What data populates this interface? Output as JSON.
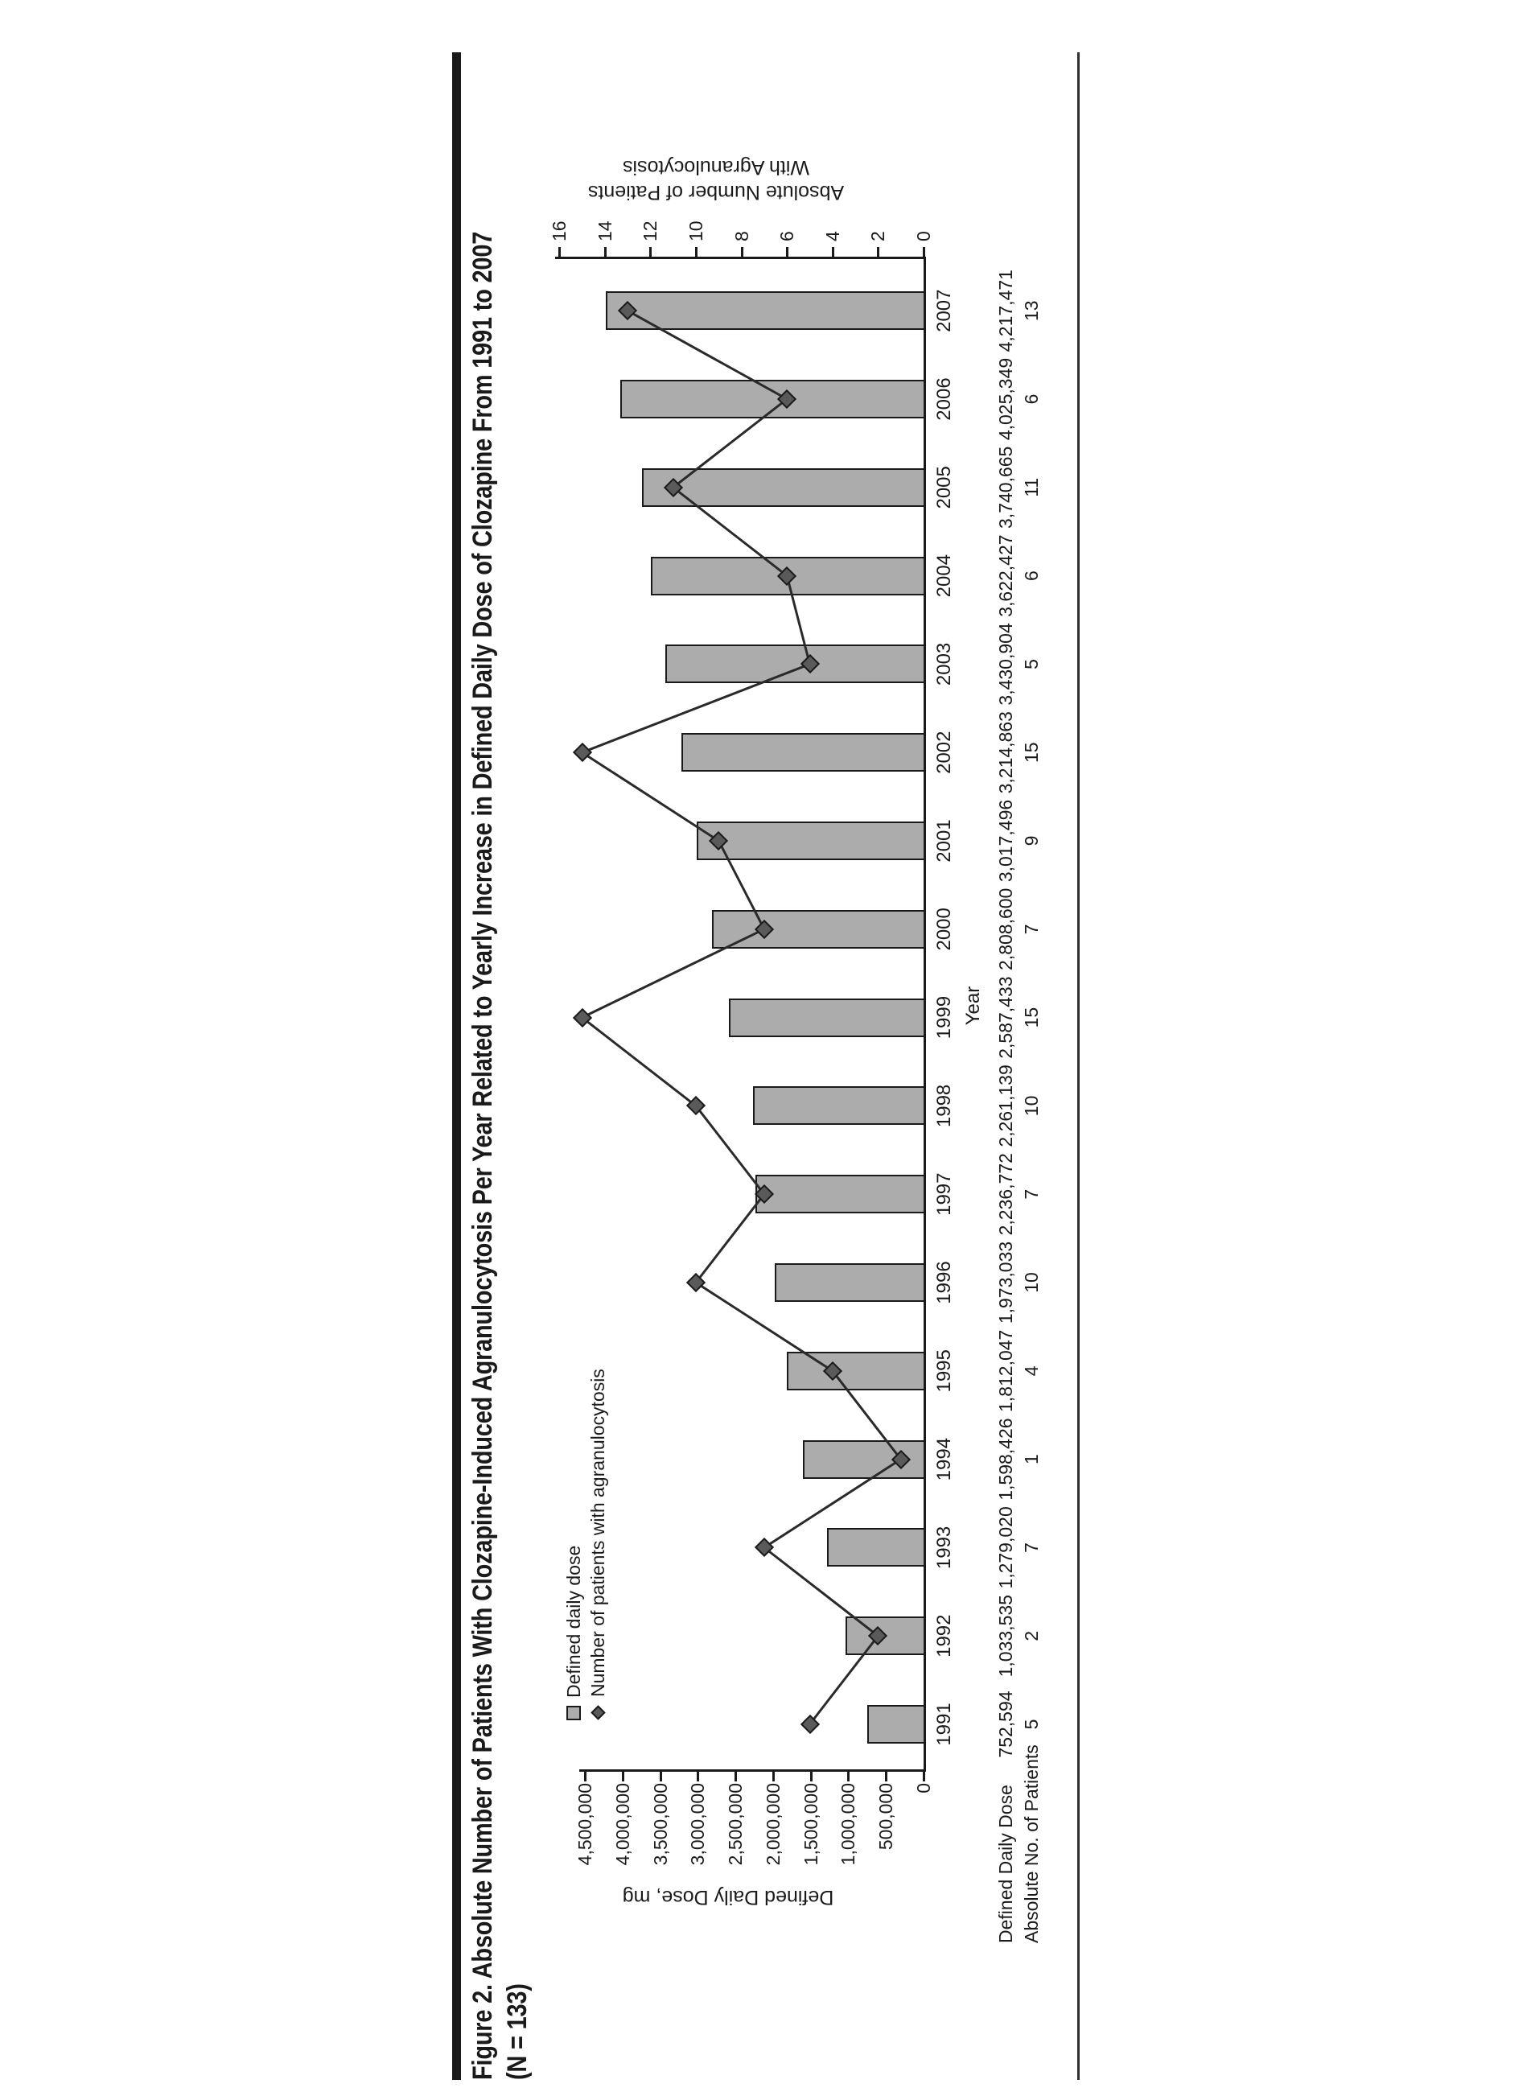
{
  "figure": {
    "title": "Figure 2. Absolute Number of Patients With Clozapine-Induced Agranulocytosis Per Year Related to Yearly Increase in Defined Daily Dose of Clozapine From 1991 to 2007",
    "subtitle": "(N = 133)"
  },
  "legend": {
    "bar_label": "Defined daily dose",
    "line_label": "Number of patients with agranulocytosis"
  },
  "axes": {
    "left_title": "Defined Daily Dose, mg",
    "right_title_line1": "Absolute Number of Patients",
    "right_title_line2": "With Agranulocytosis",
    "x_title": "Year"
  },
  "table": {
    "row1_header": "Defined Daily Dose",
    "row2_header": "Absolute No. of Patients",
    "row1_values": [
      "752,594",
      "1,033,535",
      "1,279,020",
      "1,598,426",
      "1,812,047",
      "1,973,033",
      "2,236,772",
      "2,261,139",
      "2,587,433",
      "2,808,600",
      "3,017,496",
      "3,214,863",
      "3,430,904",
      "3,622,427",
      "3,740,665",
      "4,025,349",
      "4,217,471"
    ],
    "row2_values": [
      "5",
      "2",
      "7",
      "1",
      "4",
      "10",
      "7",
      "10",
      "15",
      "7",
      "9",
      "15",
      "5",
      "6",
      "11",
      "6",
      "13"
    ]
  },
  "chart_data": {
    "type": "bar+line",
    "title": "Figure 2. Absolute Number of Patients With Clozapine-Induced Agranulocytosis Per Year Related to Yearly Increase in Defined Daily Dose of Clozapine From 1991 to 2007 (N = 133)",
    "categories": [
      "1991",
      "1992",
      "1993",
      "1994",
      "1995",
      "1996",
      "1997",
      "1998",
      "1999",
      "2000",
      "2001",
      "2002",
      "2003",
      "2004",
      "2005",
      "2006",
      "2007"
    ],
    "series": [
      {
        "name": "Defined daily dose",
        "type": "bar",
        "axis": "left",
        "values": [
          752594,
          1033535,
          1279020,
          1598426,
          1812047,
          1973033,
          2236772,
          2261139,
          2587433,
          2808600,
          3017496,
          3214863,
          3430904,
          3622427,
          3740665,
          4025349,
          4217471
        ]
      },
      {
        "name": "Number of patients with agranulocytosis",
        "type": "line",
        "axis": "right",
        "values": [
          5,
          2,
          7,
          1,
          4,
          10,
          7,
          10,
          15,
          7,
          9,
          15,
          5,
          6,
          11,
          6,
          13
        ]
      }
    ],
    "xlabel": "Year",
    "left_axis": {
      "label": "Defined Daily Dose, mg",
      "range": [
        0,
        4500000
      ],
      "tick_step": 500000,
      "tick_labels": [
        "0",
        "500,000",
        "1,000,000",
        "1,500,000",
        "2,000,000",
        "2,500,000",
        "3,000,000",
        "3,500,000",
        "4,000,000",
        "4,500,000"
      ]
    },
    "right_axis": {
      "label": "Absolute Number of Patients With Agranulocytosis",
      "range": [
        0,
        16
      ],
      "tick_step": 2,
      "tick_labels": [
        "0",
        "2",
        "4",
        "6",
        "8",
        "10",
        "12",
        "14",
        "16"
      ]
    },
    "grid": false,
    "legend_position": "top-left-inside",
    "orientation_note": "figure printed rotated 90deg counterclockwise on portrait page"
  }
}
